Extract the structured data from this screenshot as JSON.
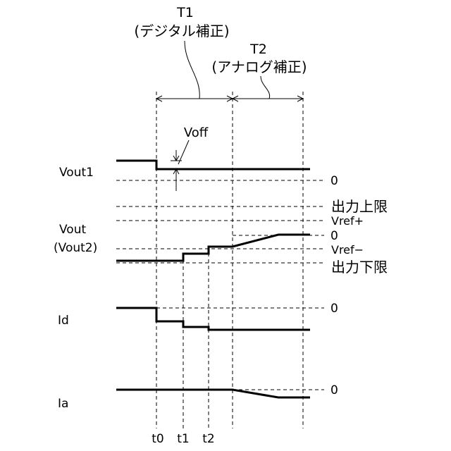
{
  "phases": {
    "t1": {
      "label": "T1",
      "desc": "(デジタル補正)"
    },
    "t2": {
      "label": "T2",
      "desc": "(アナログ補正)"
    }
  },
  "annotations": {
    "voff": "Voff"
  },
  "signals": {
    "vout1": "Vout1",
    "vout": "Vout",
    "vout2": "(Vout2)",
    "id": "Id",
    "ia": "Ia"
  },
  "levels": {
    "vout1_zero": "0",
    "output_upper": "出力上限",
    "vref_plus": "Vref+",
    "vout_zero": "0",
    "vref_minus": "Vref−",
    "output_lower": "出力下限",
    "id_zero": "0",
    "ia_zero": "0"
  },
  "times": [
    "t0",
    "t1",
    "t2"
  ]
}
